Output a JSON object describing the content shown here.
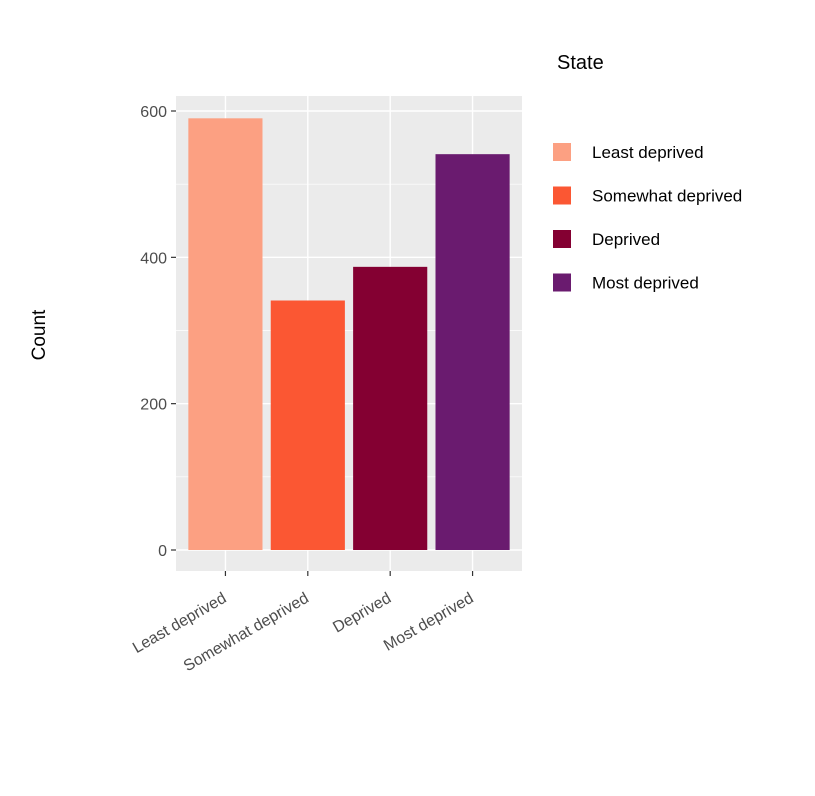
{
  "chart_data": {
    "type": "bar",
    "title": "",
    "xlabel": "",
    "ylabel": "Count",
    "categories": [
      "Least deprived",
      "Somewhat deprived",
      "Deprived",
      "Most deprived"
    ],
    "values": [
      590,
      341,
      387,
      541
    ],
    "colors": [
      "#FCA082",
      "#FB5733",
      "#840032",
      "#6A1B6F"
    ],
    "ylim": [
      -30,
      625
    ],
    "yticks": [
      0,
      200,
      400,
      600
    ],
    "grid": true,
    "background": "#EBEBEB",
    "legend": {
      "title": "State",
      "position": "right",
      "entries": [
        "Least deprived",
        "Somewhat deprived",
        "Deprived",
        "Most deprived"
      ]
    }
  }
}
